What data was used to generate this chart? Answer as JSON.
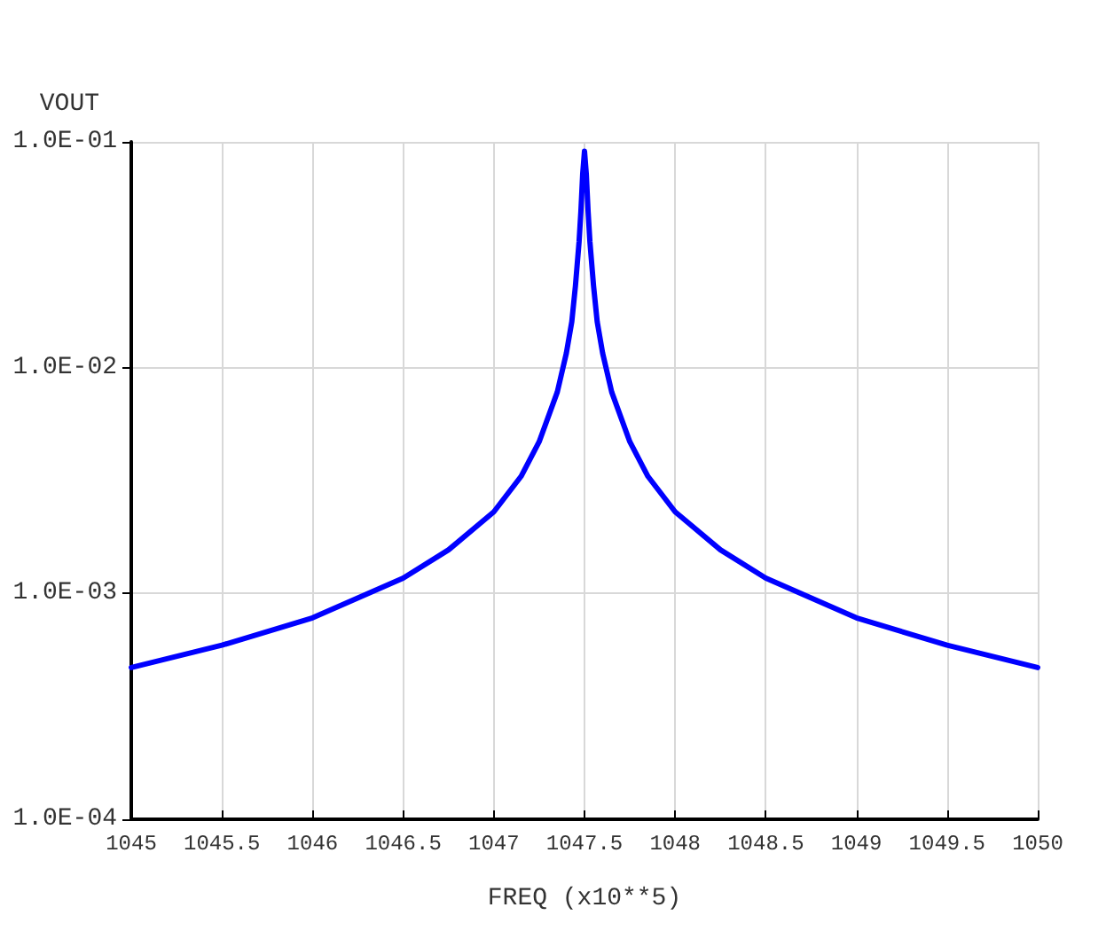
{
  "chart_data": {
    "type": "line",
    "xlabel": "FREQ (x10**5)",
    "ylabel": "VOUT",
    "x": [
      1045,
      1045.5,
      1046,
      1046.5,
      1046.75,
      1047,
      1047.15,
      1047.25,
      1047.35,
      1047.4,
      1047.43,
      1047.45,
      1047.47,
      1047.48,
      1047.49,
      1047.5,
      1047.51,
      1047.52,
      1047.53,
      1047.55,
      1047.57,
      1047.6,
      1047.65,
      1047.75,
      1047.85,
      1048,
      1048.25,
      1048.5,
      1049,
      1049.5,
      1050
    ],
    "series": [
      {
        "color": "#0000ff",
        "values": [
          0.00047,
          0.00059,
          0.00078,
          0.00117,
          0.00156,
          0.0023,
          0.0033,
          0.0047,
          0.0078,
          0.0116,
          0.016,
          0.023,
          0.036,
          0.049,
          0.072,
          0.091,
          0.072,
          0.049,
          0.036,
          0.023,
          0.016,
          0.0116,
          0.0078,
          0.0047,
          0.0033,
          0.0023,
          0.00156,
          0.00117,
          0.00078,
          0.00059,
          0.00047
        ]
      }
    ],
    "xlim": [
      1045,
      1050
    ],
    "xticks": [
      1045,
      1045.5,
      1046,
      1046.5,
      1047,
      1047.5,
      1048,
      1048.5,
      1049,
      1049.5,
      1050
    ],
    "ylim": [
      0.0001,
      0.1
    ],
    "yticks": [
      {
        "value": 0.0001,
        "label": "1.0E-04"
      },
      {
        "value": 0.001,
        "label": "1.0E-03"
      },
      {
        "value": 0.01,
        "label": "1.0E-02"
      },
      {
        "value": 0.1,
        "label": "1.0E-01"
      }
    ],
    "log": "y",
    "grid": true,
    "marker": "none",
    "line_style": "solid"
  }
}
